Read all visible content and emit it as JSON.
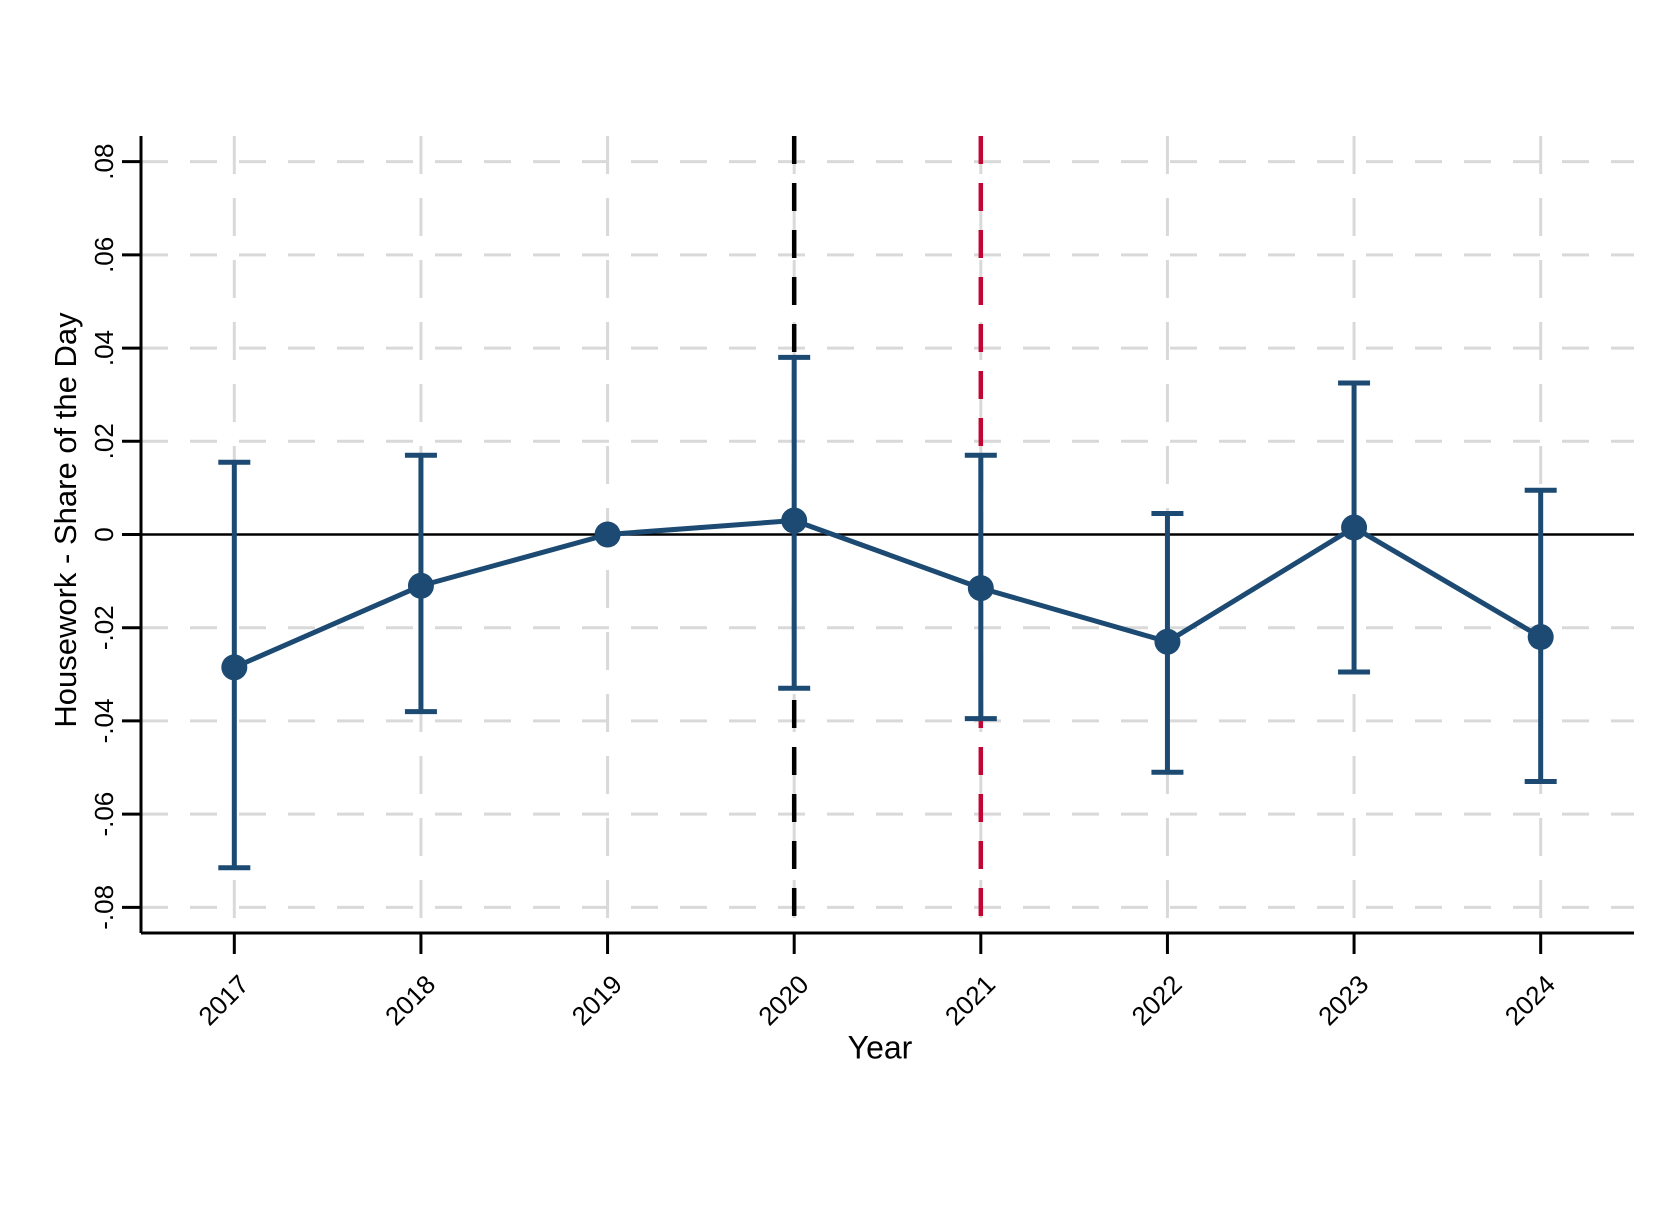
{
  "chart_data": {
    "type": "line",
    "subtype": "coefficient-plot-with-error-bars",
    "title": "",
    "xlabel": "Year",
    "ylabel": "Housework - Share of the Day",
    "categories": [
      "2017",
      "2018",
      "2019",
      "2020",
      "2021",
      "2022",
      "2023",
      "2024"
    ],
    "series": [
      {
        "name": "estimate",
        "values": [
          -0.0285,
          -0.011,
          0.0,
          0.003,
          -0.0115,
          -0.023,
          0.0015,
          -0.022
        ],
        "ci_low": [
          -0.0715,
          -0.038,
          null,
          -0.033,
          -0.0395,
          -0.051,
          -0.0295,
          -0.053
        ],
        "ci_high": [
          0.0155,
          0.017,
          null,
          0.038,
          0.017,
          0.0045,
          0.0325,
          0.0095
        ],
        "color": "#1c4a72",
        "marker": "circle"
      }
    ],
    "yticks": [
      {
        "value": 0.08,
        "label": ".08"
      },
      {
        "value": 0.06,
        "label": ".06"
      },
      {
        "value": 0.04,
        "label": ".04"
      },
      {
        "value": 0.02,
        "label": ".02"
      },
      {
        "value": 0.0,
        "label": "0"
      },
      {
        "value": -0.02,
        "label": "-.02"
      },
      {
        "value": -0.04,
        "label": "-.04"
      },
      {
        "value": -0.06,
        "label": "-.06"
      },
      {
        "value": -0.08,
        "label": "-.08"
      }
    ],
    "ylim": [
      -0.0855,
      0.0855
    ],
    "grid": "dashed",
    "grid_color": "#d9d9d9",
    "legend_position": "none",
    "reference_lines": [
      {
        "name": "zero-line",
        "axis": "y",
        "value": 0.0,
        "style": "solid",
        "color": "#000000"
      },
      {
        "name": "event-line-2020",
        "axis": "x",
        "category": "2020",
        "style": "dashed",
        "color": "#000000"
      },
      {
        "name": "event-line-2021",
        "axis": "x",
        "category": "2021",
        "style": "dashed",
        "color": "#c10534"
      }
    ],
    "axis_color": "#000000"
  }
}
